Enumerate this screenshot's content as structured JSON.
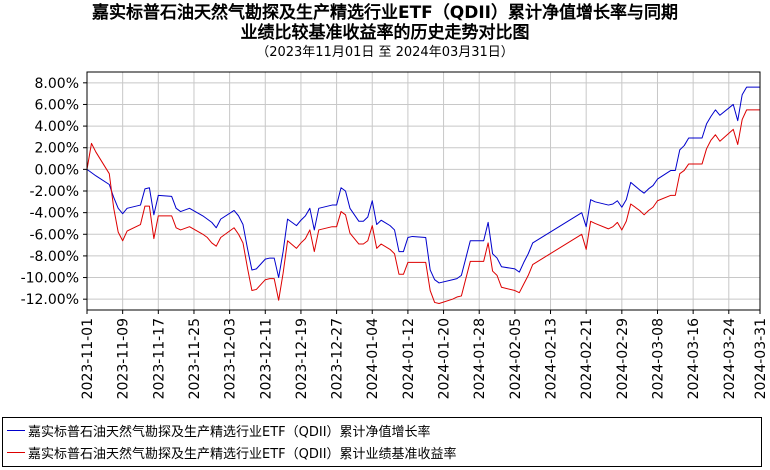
{
  "chart_data": {
    "type": "line",
    "title_line1": "嘉实标普石油天然气勘探及生产精选行业ETF（QDII）累计净值增长率与同期",
    "title_line2": "业绩比较基准收益率的历史走势对比图",
    "subtitle": "（2023年11月01日 至 2024年03月31日）",
    "ylim": [
      -13,
      9
    ],
    "y_ticks": [
      8,
      6,
      4,
      2,
      0,
      -2,
      -4,
      -6,
      -8,
      -10,
      -12
    ],
    "y_tick_labels": [
      "8.00%",
      "6.00%",
      "4.00%",
      "2.00%",
      "0.00%",
      "-2.00%",
      "-4.00%",
      "-6.00%",
      "-8.00%",
      "-10.00%",
      "-12.00%"
    ],
    "x_ticks": [
      "2023-11-01",
      "2023-11-09",
      "2023-11-17",
      "2023-11-25",
      "2023-12-03",
      "2023-12-11",
      "2023-12-19",
      "2023-12-27",
      "2024-01-04",
      "2024-01-12",
      "2024-01-20",
      "2024-01-28",
      "2024-02-05",
      "2024-02-13",
      "2024-02-21",
      "2024-02-29",
      "2024-03-08",
      "2024-03-16",
      "2024-03-24",
      "2024-03-31"
    ],
    "x_range": [
      "2023-11-01",
      "2024-03-31"
    ],
    "grid": true,
    "legend_position": "bottom",
    "series": [
      {
        "name": "嘉实标普石油天然气勘探及生产精选行业ETF（QDII）累计净值增长率",
        "color": "#0000cc",
        "points": [
          [
            "2023-11-01",
            0.0
          ],
          [
            "2023-11-02",
            -0.3
          ],
          [
            "2023-11-03",
            -0.6
          ],
          [
            "2023-11-06",
            -1.4
          ],
          [
            "2023-11-07",
            -2.6
          ],
          [
            "2023-11-08",
            -3.6
          ],
          [
            "2023-11-09",
            -4.1
          ],
          [
            "2023-11-10",
            -3.6
          ],
          [
            "2023-11-13",
            -3.3
          ],
          [
            "2023-11-14",
            -1.8
          ],
          [
            "2023-11-15",
            -1.7
          ],
          [
            "2023-11-16",
            -4.2
          ],
          [
            "2023-11-17",
            -2.4
          ],
          [
            "2023-11-20",
            -2.5
          ],
          [
            "2023-11-21",
            -3.6
          ],
          [
            "2023-11-22",
            -3.9
          ],
          [
            "2023-11-24",
            -3.6
          ],
          [
            "2023-11-27",
            -4.3
          ],
          [
            "2023-11-28",
            -4.6
          ],
          [
            "2023-11-29",
            -4.9
          ],
          [
            "2023-11-30",
            -5.4
          ],
          [
            "2023-12-01",
            -4.6
          ],
          [
            "2023-12-04",
            -3.8
          ],
          [
            "2023-12-05",
            -4.3
          ],
          [
            "2023-12-06",
            -5.1
          ],
          [
            "2023-12-07",
            -7.3
          ],
          [
            "2023-12-08",
            -9.3
          ],
          [
            "2023-12-09",
            -9.2
          ],
          [
            "2023-12-11",
            -8.3
          ],
          [
            "2023-12-12",
            -8.2
          ],
          [
            "2023-12-13",
            -8.2
          ],
          [
            "2023-12-14",
            -10.0
          ],
          [
            "2023-12-15",
            -7.6
          ],
          [
            "2023-12-16",
            -4.6
          ],
          [
            "2023-12-18",
            -5.2
          ],
          [
            "2023-12-19",
            -4.7
          ],
          [
            "2023-12-20",
            -4.3
          ],
          [
            "2023-12-21",
            -3.6
          ],
          [
            "2023-12-22",
            -5.6
          ],
          [
            "2023-12-23",
            -3.6
          ],
          [
            "2023-12-26",
            -3.3
          ],
          [
            "2023-12-27",
            -3.3
          ],
          [
            "2023-12-28",
            -1.7
          ],
          [
            "2023-12-29",
            -2.0
          ],
          [
            "2023-12-30",
            -3.6
          ],
          [
            "2024-01-01",
            -4.8
          ],
          [
            "2024-01-02",
            -4.8
          ],
          [
            "2024-01-03",
            -4.4
          ],
          [
            "2024-01-04",
            -2.9
          ],
          [
            "2024-01-05",
            -5.1
          ],
          [
            "2024-01-06",
            -4.7
          ],
          [
            "2024-01-08",
            -5.2
          ],
          [
            "2024-01-09",
            -5.6
          ],
          [
            "2024-01-10",
            -7.6
          ],
          [
            "2024-01-11",
            -7.6
          ],
          [
            "2024-01-12",
            -6.3
          ],
          [
            "2024-01-13",
            -6.2
          ],
          [
            "2024-01-16",
            -6.3
          ],
          [
            "2024-01-17",
            -9.3
          ],
          [
            "2024-01-18",
            -10.2
          ],
          [
            "2024-01-19",
            -10.5
          ],
          [
            "2024-01-22",
            -10.2
          ],
          [
            "2024-01-23",
            -10.1
          ],
          [
            "2024-01-24",
            -9.8
          ],
          [
            "2024-01-25",
            -8.2
          ],
          [
            "2024-01-26",
            -6.6
          ],
          [
            "2024-01-29",
            -6.6
          ],
          [
            "2024-01-30",
            -4.9
          ],
          [
            "2024-01-31",
            -7.8
          ],
          [
            "2024-02-01",
            -8.2
          ],
          [
            "2024-02-02",
            -9.0
          ],
          [
            "2024-02-05",
            -9.2
          ],
          [
            "2024-02-06",
            -9.5
          ],
          [
            "2024-02-07",
            -8.6
          ],
          [
            "2024-02-08",
            -7.8
          ],
          [
            "2024-02-09",
            -6.8
          ],
          [
            "2024-02-20",
            -4.0
          ],
          [
            "2024-02-21",
            -5.3
          ],
          [
            "2024-02-22",
            -2.8
          ],
          [
            "2024-02-23",
            -3.0
          ],
          [
            "2024-02-26",
            -3.3
          ],
          [
            "2024-02-27",
            -3.2
          ],
          [
            "2024-02-28",
            -2.9
          ],
          [
            "2024-02-29",
            -3.5
          ],
          [
            "2024-03-01",
            -2.8
          ],
          [
            "2024-03-02",
            -1.2
          ],
          [
            "2024-03-04",
            -1.9
          ],
          [
            "2024-03-05",
            -2.2
          ],
          [
            "2024-03-06",
            -1.8
          ],
          [
            "2024-03-07",
            -1.5
          ],
          [
            "2024-03-08",
            -0.9
          ],
          [
            "2024-03-11",
            -0.1
          ],
          [
            "2024-03-12",
            -0.1
          ],
          [
            "2024-03-13",
            1.8
          ],
          [
            "2024-03-14",
            2.2
          ],
          [
            "2024-03-15",
            2.9
          ],
          [
            "2024-03-18",
            2.9
          ],
          [
            "2024-03-19",
            4.2
          ],
          [
            "2024-03-20",
            4.9
          ],
          [
            "2024-03-21",
            5.5
          ],
          [
            "2024-03-22",
            5.0
          ],
          [
            "2024-03-25",
            6.0
          ],
          [
            "2024-03-26",
            4.5
          ],
          [
            "2024-03-27",
            6.9
          ],
          [
            "2024-03-28",
            7.6
          ],
          [
            "2024-03-31",
            7.6
          ]
        ]
      },
      {
        "name": "嘉实标普石油天然气勘探及生产精选行业ETF（QDII）累计业绩基准收益率",
        "color": "#dd0000",
        "points": [
          [
            "2023-11-01",
            0.0
          ],
          [
            "2023-11-02",
            2.4
          ],
          [
            "2023-11-03",
            1.6
          ],
          [
            "2023-11-06",
            -0.4
          ],
          [
            "2023-11-07",
            -3.6
          ],
          [
            "2023-11-08",
            -5.8
          ],
          [
            "2023-11-09",
            -6.6
          ],
          [
            "2023-11-10",
            -5.7
          ],
          [
            "2023-11-13",
            -5.1
          ],
          [
            "2023-11-14",
            -3.4
          ],
          [
            "2023-11-15",
            -3.4
          ],
          [
            "2023-11-16",
            -6.4
          ],
          [
            "2023-11-17",
            -4.3
          ],
          [
            "2023-11-20",
            -4.3
          ],
          [
            "2023-11-21",
            -5.4
          ],
          [
            "2023-11-22",
            -5.6
          ],
          [
            "2023-11-24",
            -5.3
          ],
          [
            "2023-11-27",
            -6.0
          ],
          [
            "2023-11-28",
            -6.3
          ],
          [
            "2023-11-29",
            -6.8
          ],
          [
            "2023-11-30",
            -7.1
          ],
          [
            "2023-12-01",
            -6.3
          ],
          [
            "2023-12-04",
            -5.4
          ],
          [
            "2023-12-05",
            -6.0
          ],
          [
            "2023-12-06",
            -6.8
          ],
          [
            "2023-12-07",
            -9.1
          ],
          [
            "2023-12-08",
            -11.2
          ],
          [
            "2023-12-09",
            -11.1
          ],
          [
            "2023-12-11",
            -10.2
          ],
          [
            "2023-12-12",
            -10.1
          ],
          [
            "2023-12-13",
            -10.1
          ],
          [
            "2023-12-14",
            -12.1
          ],
          [
            "2023-12-15",
            -9.6
          ],
          [
            "2023-12-16",
            -6.6
          ],
          [
            "2023-12-18",
            -7.3
          ],
          [
            "2023-12-19",
            -6.8
          ],
          [
            "2023-12-20",
            -6.4
          ],
          [
            "2023-12-21",
            -5.6
          ],
          [
            "2023-12-22",
            -7.6
          ],
          [
            "2023-12-23",
            -5.6
          ],
          [
            "2023-12-26",
            -5.3
          ],
          [
            "2023-12-27",
            -5.3
          ],
          [
            "2023-12-28",
            -3.9
          ],
          [
            "2023-12-29",
            -4.2
          ],
          [
            "2023-12-30",
            -5.9
          ],
          [
            "2024-01-01",
            -6.9
          ],
          [
            "2024-01-02",
            -6.9
          ],
          [
            "2024-01-03",
            -6.6
          ],
          [
            "2024-01-04",
            -5.2
          ],
          [
            "2024-01-05",
            -7.3
          ],
          [
            "2024-01-06",
            -6.9
          ],
          [
            "2024-01-08",
            -7.4
          ],
          [
            "2024-01-09",
            -7.8
          ],
          [
            "2024-01-10",
            -9.7
          ],
          [
            "2024-01-11",
            -9.7
          ],
          [
            "2024-01-12",
            -8.6
          ],
          [
            "2024-01-13",
            -8.6
          ],
          [
            "2024-01-16",
            -8.6
          ],
          [
            "2024-01-17",
            -11.2
          ],
          [
            "2024-01-18",
            -12.3
          ],
          [
            "2024-01-19",
            -12.4
          ],
          [
            "2024-01-22",
            -12.0
          ],
          [
            "2024-01-23",
            -11.8
          ],
          [
            "2024-01-24",
            -11.7
          ],
          [
            "2024-01-25",
            -10.1
          ],
          [
            "2024-01-26",
            -8.5
          ],
          [
            "2024-01-29",
            -8.5
          ],
          [
            "2024-01-30",
            -6.8
          ],
          [
            "2024-01-31",
            -9.4
          ],
          [
            "2024-02-01",
            -9.8
          ],
          [
            "2024-02-02",
            -10.9
          ],
          [
            "2024-02-05",
            -11.2
          ],
          [
            "2024-02-06",
            -11.4
          ],
          [
            "2024-02-07",
            -10.6
          ],
          [
            "2024-02-08",
            -9.8
          ],
          [
            "2024-02-09",
            -8.8
          ],
          [
            "2024-02-20",
            -6.0
          ],
          [
            "2024-02-21",
            -7.4
          ],
          [
            "2024-02-22",
            -4.8
          ],
          [
            "2024-02-23",
            -5.0
          ],
          [
            "2024-02-26",
            -5.5
          ],
          [
            "2024-02-27",
            -5.3
          ],
          [
            "2024-02-28",
            -4.9
          ],
          [
            "2024-02-29",
            -5.6
          ],
          [
            "2024-03-01",
            -4.8
          ],
          [
            "2024-03-02",
            -3.2
          ],
          [
            "2024-03-04",
            -3.8
          ],
          [
            "2024-03-05",
            -4.2
          ],
          [
            "2024-03-06",
            -3.8
          ],
          [
            "2024-03-07",
            -3.5
          ],
          [
            "2024-03-08",
            -2.9
          ],
          [
            "2024-03-11",
            -2.4
          ],
          [
            "2024-03-12",
            -2.4
          ],
          [
            "2024-03-13",
            -0.4
          ],
          [
            "2024-03-14",
            -0.1
          ],
          [
            "2024-03-15",
            0.5
          ],
          [
            "2024-03-18",
            0.5
          ],
          [
            "2024-03-19",
            1.9
          ],
          [
            "2024-03-20",
            2.7
          ],
          [
            "2024-03-21",
            3.2
          ],
          [
            "2024-03-22",
            2.6
          ],
          [
            "2024-03-25",
            3.7
          ],
          [
            "2024-03-26",
            2.3
          ],
          [
            "2024-03-27",
            4.6
          ],
          [
            "2024-03-28",
            5.5
          ],
          [
            "2024-03-31",
            5.5
          ]
        ]
      }
    ]
  }
}
